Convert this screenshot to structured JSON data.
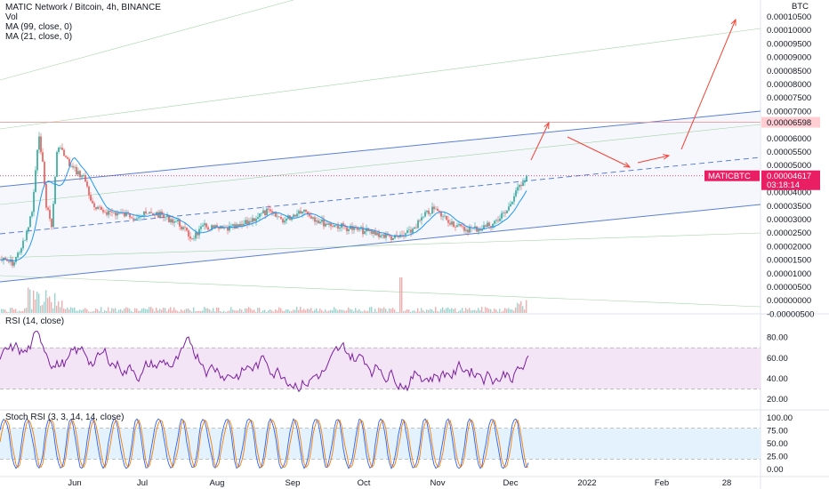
{
  "legend": {
    "title": "MATIC Network / Bitcoin, 4h, BINANCE",
    "vol": "Vol",
    "ma99": "MA (99, close, 0)",
    "ma21": "MA (21, close, 0)"
  },
  "rsi_pane": {
    "title": "RSI (14, close)"
  },
  "stoch_pane": {
    "title": "Stoch RSI (3, 3, 14, 14, close)"
  },
  "price_axis": {
    "unit": "BTC",
    "ticks": [
      "0.00010500",
      "0.00010000",
      "0.00009500",
      "0.00009000",
      "0.00008500",
      "0.00008000",
      "0.00007500",
      "0.00007000",
      "0.00006500",
      "0.00006000",
      "0.00005500",
      "0.00005000",
      "0.00004500",
      "0.00004000",
      "0.00003500",
      "0.00003000",
      "0.00002500",
      "0.00002000",
      "0.00001500",
      "0.00001000",
      "0.00000500",
      "0.00000000",
      "-0.00000500"
    ],
    "level_label": "0.00006598",
    "symbol_label": "MATICBTC",
    "last_price": "0.00004617",
    "countdown": "03:18:14"
  },
  "rsi_axis": {
    "ticks": [
      "80.00",
      "60.00",
      "40.00",
      "20.00"
    ]
  },
  "stoch_axis": {
    "ticks": [
      "100.00",
      "75.00",
      "50.00",
      "25.00",
      "0.00"
    ]
  },
  "time_axis": {
    "labels": [
      "Jun",
      "Jul",
      "Aug",
      "Sep",
      "Oct",
      "Nov",
      "Dec",
      "2022",
      "Feb",
      "28"
    ]
  },
  "colors": {
    "candle_up": "#26a69a",
    "candle_down": "#ef5350",
    "price_line": "#c2185b",
    "ma21": "#2196f3",
    "channel": "#5b7fd6",
    "rsi_line": "#7b1fa2",
    "rsi_band": "#f3e5f5",
    "stoch_k": "#2962ff",
    "stoch_d": "#f57c00",
    "stoch_band": "#e3f2fd",
    "arrow": "#f44336",
    "last_price_bg": "#e91e63"
  },
  "chart_data": {
    "type": "line",
    "xlabel": "",
    "ylabel": "",
    "ylim": [
      -5e-06,
      0.00011
    ],
    "series": [
      {
        "x": [
          "Jun",
          "Jul",
          "Aug",
          "Sep",
          "Oct",
          "Nov",
          "Dec"
        ],
        "values": [
          5.5e-05,
          3.4e-05,
          3e-05,
          3.4e-05,
          2.4e-05,
          3.2e-05,
          4.6e-05
        ]
      }
    ],
    "last_price": 4.617e-05,
    "level": 6.598e-05,
    "rsi_range": [
      15,
      90
    ],
    "stoch_range": [
      0,
      100
    ]
  }
}
